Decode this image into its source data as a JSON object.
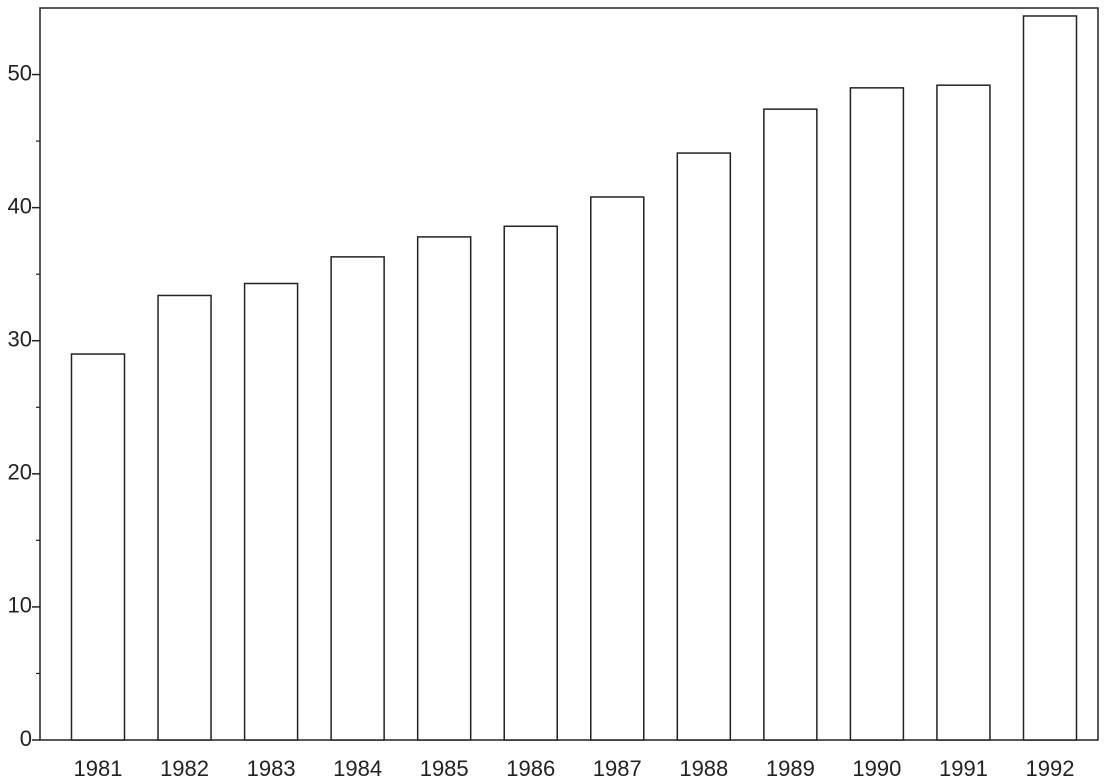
{
  "chart_data": {
    "type": "bar",
    "categories": [
      "1981",
      "1982",
      "1983",
      "1984",
      "1985",
      "1986",
      "1987",
      "1988",
      "1989",
      "1990",
      "1991",
      "1992"
    ],
    "values": [
      29,
      33.4,
      34.3,
      36.3,
      37.8,
      38.6,
      40.8,
      44.1,
      47.4,
      49,
      49.2,
      54.4
    ],
    "color": "#ffffff",
    "ylim": [
      0,
      55
    ],
    "yticks": [
      0,
      10,
      20,
      30,
      40,
      50
    ],
    "yticks_minor": [
      5,
      15,
      25,
      35,
      45
    ],
    "grid": false
  }
}
